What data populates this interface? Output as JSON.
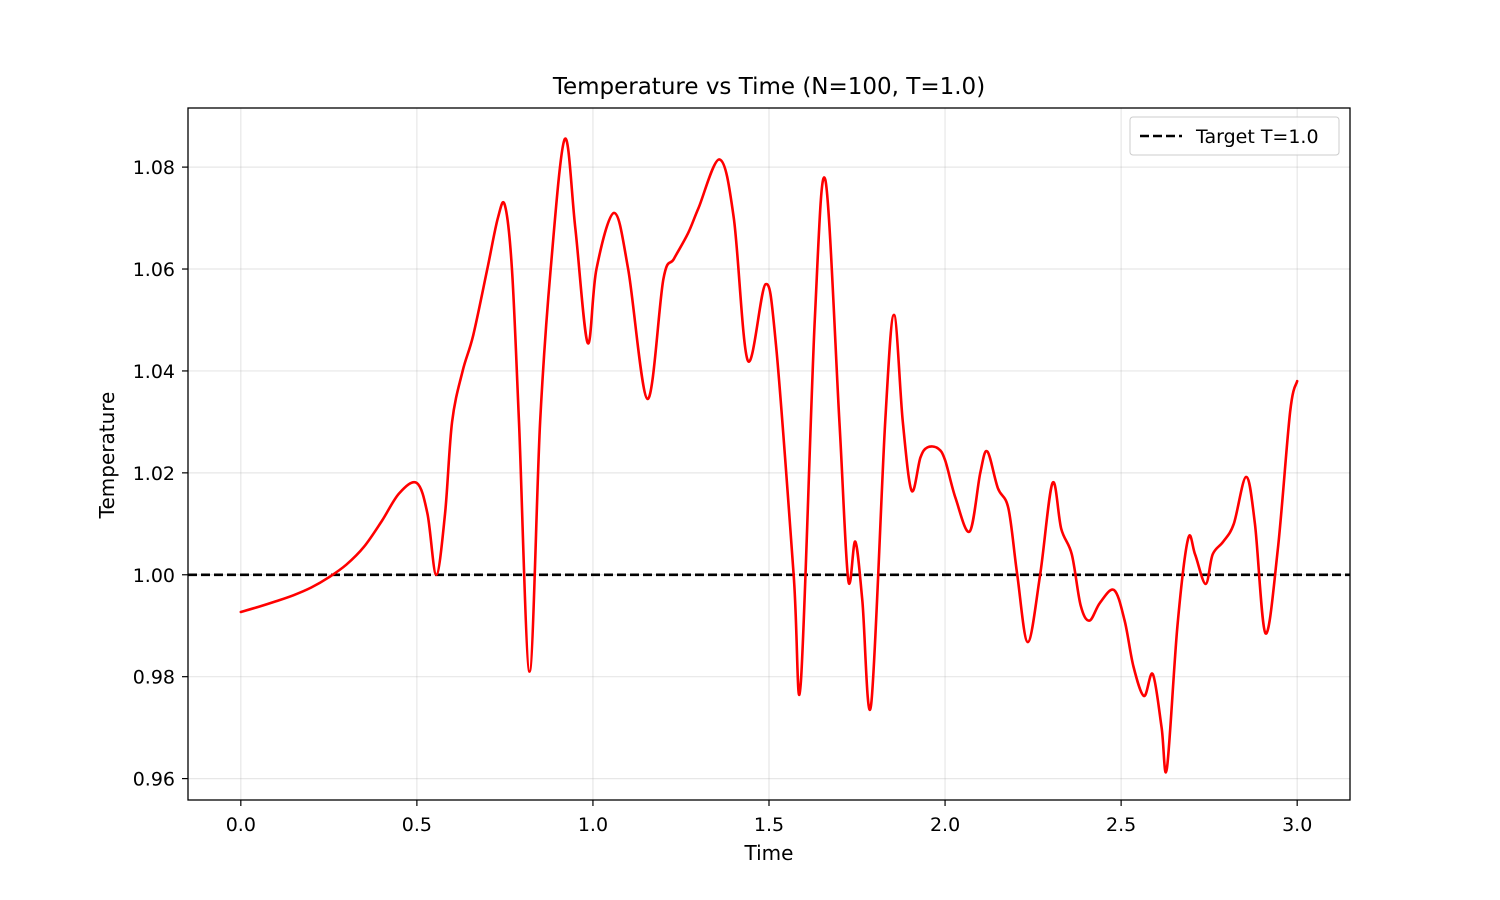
{
  "chart_data": {
    "type": "line",
    "title": "Temperature vs Time (N=100, T=1.0)",
    "xlabel": "Time",
    "ylabel": "Temperature",
    "xlim": [
      -0.15,
      3.15
    ],
    "ylim": [
      0.9558,
      1.0916
    ],
    "xticks": [
      0.0,
      0.5,
      1.0,
      1.5,
      2.0,
      2.5,
      3.0
    ],
    "xtick_labels": [
      "0.0",
      "0.5",
      "1.0",
      "1.5",
      "2.0",
      "2.5",
      "3.0"
    ],
    "yticks": [
      0.96,
      0.98,
      1.0,
      1.02,
      1.04,
      1.06,
      1.08
    ],
    "ytick_labels": [
      "0.96",
      "0.98",
      "1.00",
      "1.02",
      "1.04",
      "1.06",
      "1.08"
    ],
    "grid": true,
    "legend_position": "top-right",
    "reference_line": {
      "label": "Target T=1.0",
      "y": 1.0,
      "color": "#000000",
      "style": "dashed"
    },
    "series": [
      {
        "color": "#ff0000",
        "x": [
          0.0,
          0.05,
          0.1,
          0.15,
          0.2,
          0.25,
          0.3,
          0.35,
          0.4,
          0.45,
          0.5,
          0.53,
          0.555,
          0.58,
          0.6,
          0.63,
          0.66,
          0.7,
          0.73,
          0.75,
          0.77,
          0.79,
          0.82,
          0.85,
          0.88,
          0.92,
          0.95,
          0.985,
          1.01,
          1.06,
          1.1,
          1.155,
          1.2,
          1.23,
          1.27,
          1.3,
          1.36,
          1.4,
          1.44,
          1.49,
          1.52,
          1.57,
          1.59,
          1.63,
          1.66,
          1.7,
          1.725,
          1.745,
          1.765,
          1.79,
          1.83,
          1.855,
          1.88,
          1.905,
          1.93,
          1.95,
          1.98,
          2.0,
          2.03,
          2.07,
          2.1,
          2.12,
          2.15,
          2.18,
          2.205,
          2.235,
          2.27,
          2.305,
          2.33,
          2.36,
          2.385,
          2.41,
          2.44,
          2.48,
          2.51,
          2.535,
          2.565,
          2.59,
          2.615,
          2.63,
          2.66,
          2.69,
          2.71,
          2.74,
          2.76,
          2.79,
          2.82,
          2.855,
          2.88,
          2.91,
          2.945,
          2.98,
          3.0
        ],
        "values": [
          0.9927,
          0.9937,
          0.9948,
          0.996,
          0.9975,
          0.9995,
          1.002,
          1.0055,
          1.0105,
          1.016,
          1.018,
          1.012,
          1.0,
          1.012,
          1.03,
          1.04,
          1.047,
          1.06,
          1.07,
          1.0725,
          1.06,
          1.03,
          0.981,
          1.03,
          1.06,
          1.0855,
          1.068,
          1.0455,
          1.06,
          1.071,
          1.06,
          1.0345,
          1.058,
          1.062,
          1.067,
          1.072,
          1.0815,
          1.07,
          1.042,
          1.057,
          1.045,
          1.0,
          0.9785,
          1.05,
          1.0775,
          1.03,
          0.999,
          1.0065,
          0.995,
          0.9745,
          1.03,
          1.051,
          1.03,
          1.0165,
          1.023,
          1.025,
          1.0248,
          1.0225,
          1.015,
          1.0085,
          1.02,
          1.0242,
          1.017,
          1.013,
          1.0,
          0.9868,
          1.0,
          1.018,
          1.009,
          1.004,
          0.994,
          0.991,
          0.9945,
          0.997,
          0.991,
          0.982,
          0.9762,
          0.9805,
          0.97,
          0.962,
          0.99,
          1.007,
          1.004,
          0.9982,
          1.004,
          1.0065,
          1.01,
          1.0192,
          1.01,
          0.9885,
          1.005,
          1.032,
          1.038
        ]
      }
    ]
  }
}
